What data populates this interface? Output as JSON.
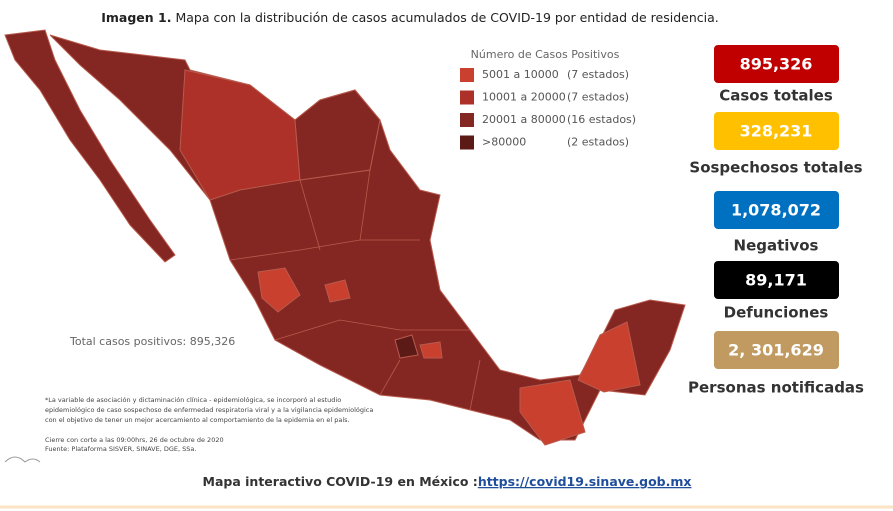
{
  "header": {
    "label": "Imagen 1.",
    "text": "Mapa con la distribución de casos acumulados de COVID-19 por entidad de residencia."
  },
  "legend": {
    "title": "Número de Casos Positivos",
    "items": [
      {
        "range": "5001 a 10000",
        "count": "(7 estados)",
        "color": "#c9402f"
      },
      {
        "range": "10001 a 20000",
        "count": "(7 estados)",
        "color": "#ad3128"
      },
      {
        "range": "20001 a 80000",
        "count": "(16 estados)",
        "color": "#842723"
      },
      {
        "range": ">80000",
        "count": "(2 estados)",
        "color": "#5c1a17"
      }
    ]
  },
  "map": {
    "total": "Total casos positivos: 895,326",
    "notes": [
      "*La variable de asociación y dictaminación clínica - epidemiológica, se incorporó al estudio",
      "epidemiológico de caso sospechoso de enfermedad respiratoria viral y a la vigilancia epidemiológica",
      "con el objetivo de tener un mejor acercamiento al comportamiento de la epidemia en el país."
    ],
    "source": [
      "Cierre con corte a las 09:00hrs, 26 de octubre de 2020",
      "Fuente: Plataforma SISVER, SINAVE, DGE, SSa."
    ]
  },
  "stats": [
    {
      "value": "895,326",
      "label": "Casos totales",
      "color": "#c00000",
      "text_color": "#ffffff"
    },
    {
      "value": "328,231",
      "label": "Sospechosos totales",
      "color": "#ffc000",
      "text_color": "#ffffff"
    },
    {
      "value": "1,078,072",
      "label": "Negativos",
      "color": "#0070c0",
      "text_color": "#ffffff"
    },
    {
      "value": "89,171",
      "label": "Defunciones",
      "color": "#000000",
      "text_color": "#ffffff"
    },
    {
      "value": "2, 301,629",
      "label": "Personas notificadas",
      "color": "#c09a60",
      "text_color": "#ffffff"
    }
  ],
  "footer": {
    "text": "Mapa interactivo COVID-19 en México :",
    "link": "https://covid19.sinave.gob.mx"
  }
}
